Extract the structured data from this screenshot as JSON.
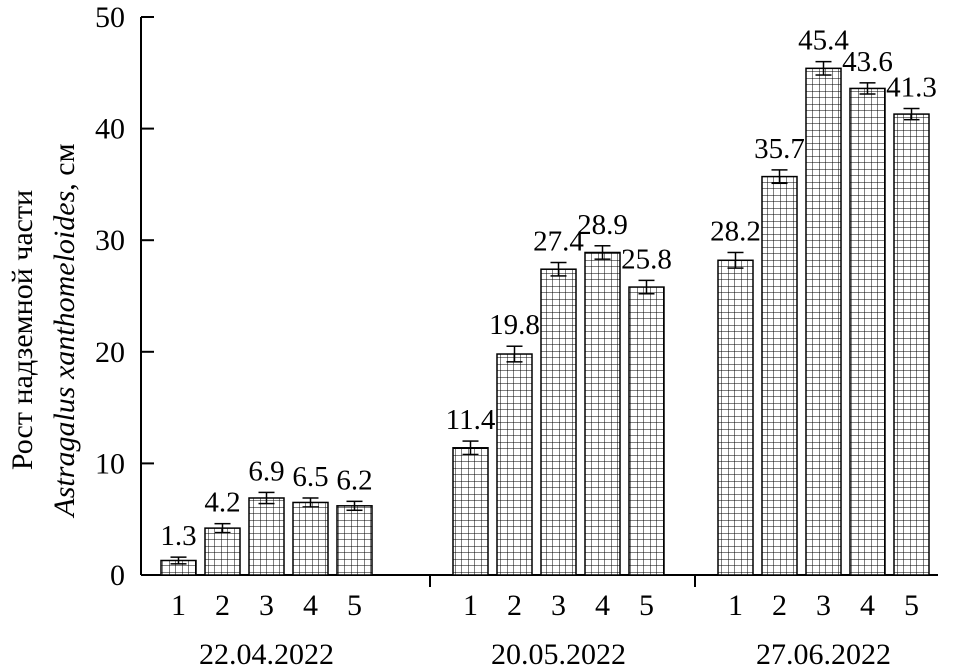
{
  "chart_data": {
    "type": "bar",
    "title": "",
    "ylabel_line1": "Рост надземной части",
    "ylabel_line2_italic": "Astragalus xanthomeloides",
    "ylabel_line2_suffix": ", см",
    "ylim": [
      0,
      50
    ],
    "yticks": [
      0,
      10,
      20,
      30,
      40,
      50
    ],
    "grid": false,
    "bar_pattern": "grid-hatch",
    "groups": [
      {
        "name": "22.04.2022",
        "categories": [
          "1",
          "2",
          "3",
          "4",
          "5"
        ],
        "values": [
          1.3,
          4.2,
          6.9,
          6.5,
          6.2
        ],
        "errors": [
          0.3,
          0.4,
          0.5,
          0.4,
          0.4
        ],
        "labels": [
          "1.3",
          "4.2",
          "6.9",
          "6.5",
          "6.2"
        ]
      },
      {
        "name": "20.05.2022",
        "categories": [
          "1",
          "2",
          "3",
          "4",
          "5"
        ],
        "values": [
          11.4,
          19.8,
          27.4,
          28.9,
          25.8
        ],
        "errors": [
          0.6,
          0.7,
          0.6,
          0.6,
          0.6
        ],
        "labels": [
          "11.4",
          "19.8",
          "27.4",
          "28.9",
          "25.8"
        ]
      },
      {
        "name": "27.06.2022",
        "categories": [
          "1",
          "2",
          "3",
          "4",
          "5"
        ],
        "values": [
          28.2,
          35.7,
          45.4,
          43.6,
          41.3
        ],
        "errors": [
          0.7,
          0.6,
          0.6,
          0.5,
          0.5
        ],
        "labels": [
          "28.2",
          "35.7",
          "45.4",
          "43.6",
          "41.3"
        ]
      }
    ]
  }
}
